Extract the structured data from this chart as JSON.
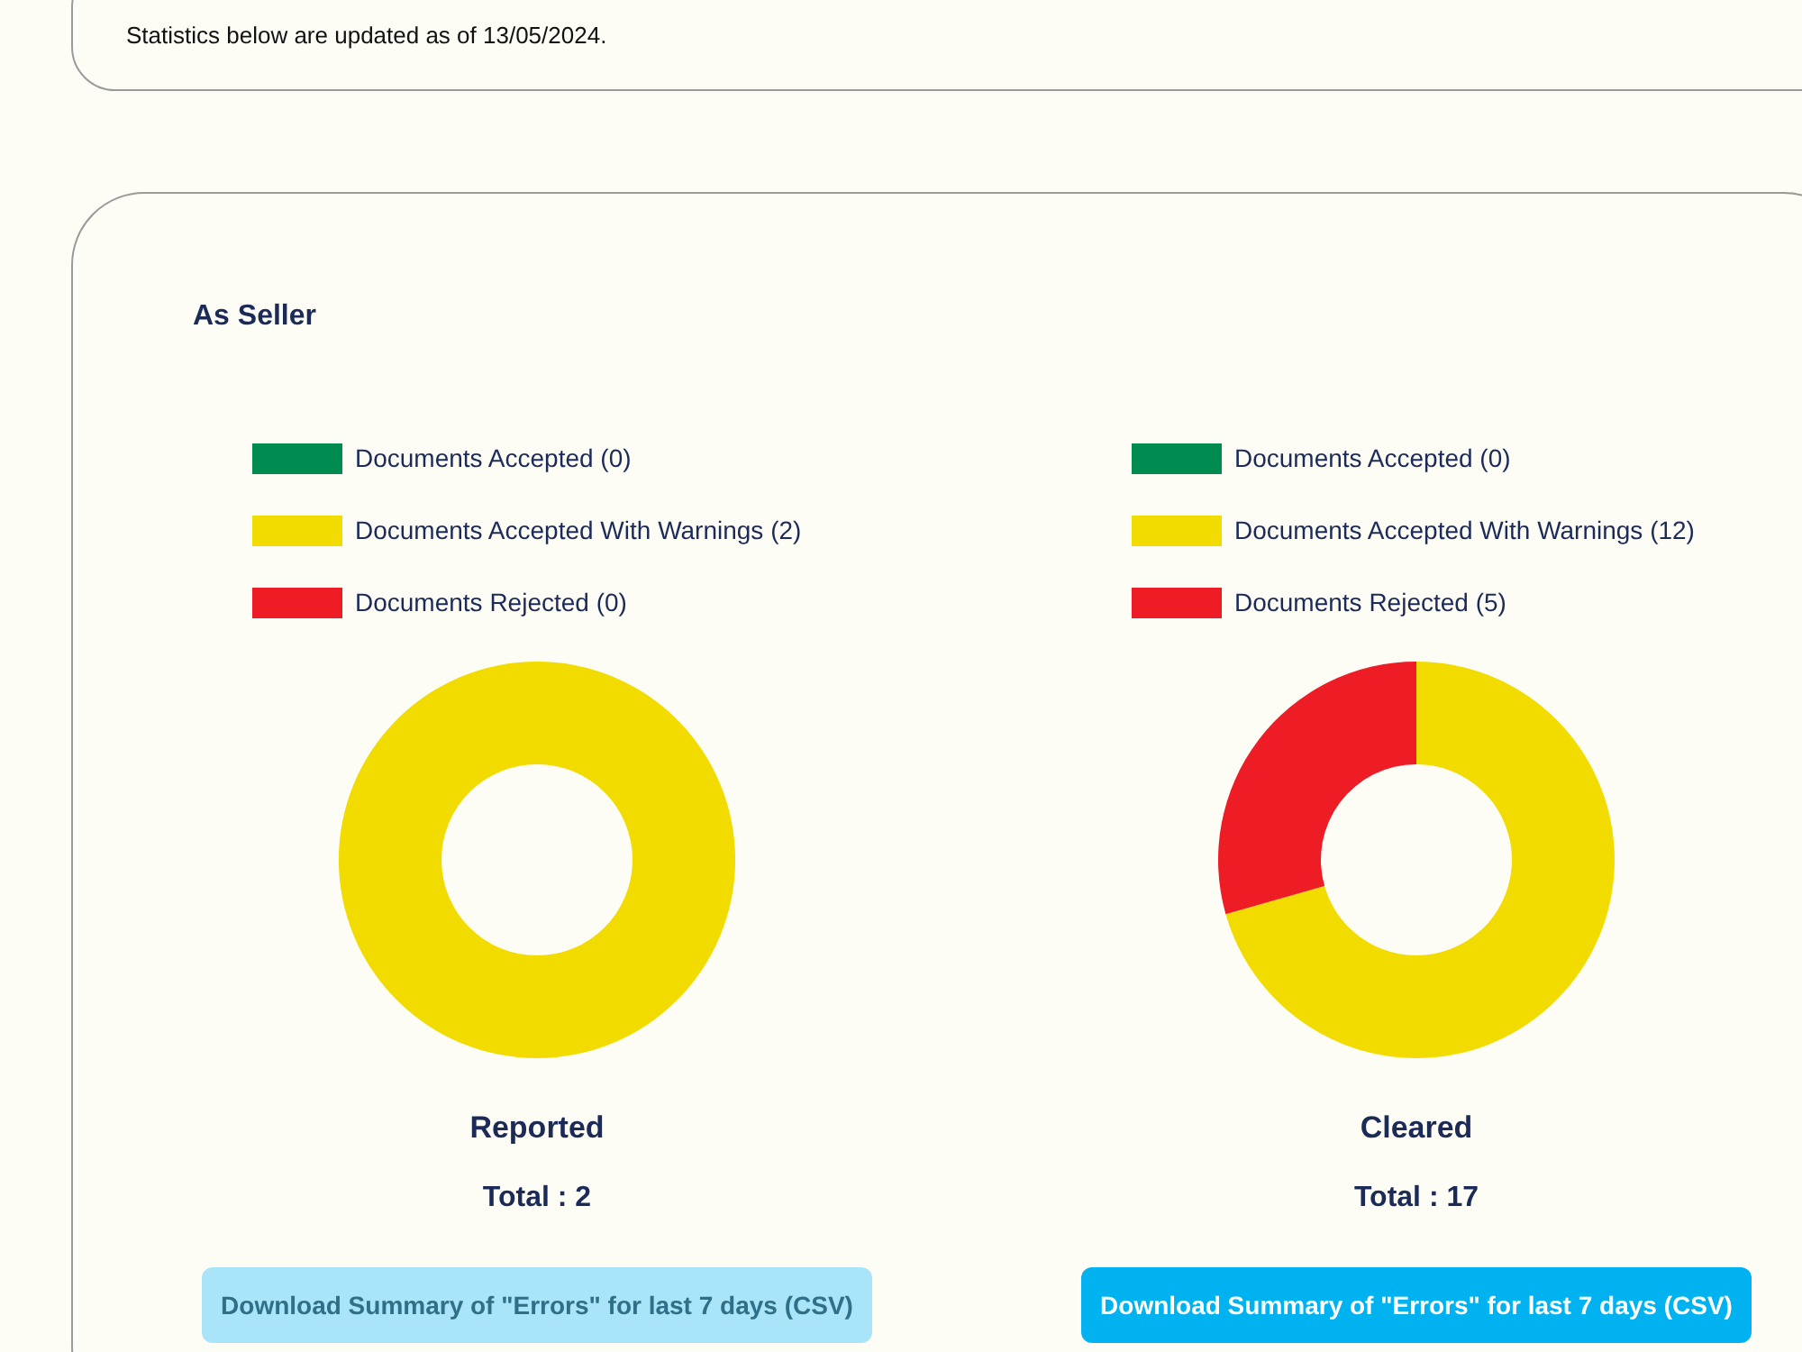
{
  "chart_data": [
    {
      "type": "donut",
      "title": "Reported",
      "subtitle": "Total : 2",
      "categories": [
        "Documents Accepted (0)",
        "Documents Accepted With Warnings (2)",
        "Documents Rejected (0)"
      ],
      "values": [
        0,
        2,
        0
      ],
      "colors": [
        "#008c50",
        "#f2dc00",
        "#ee1c25"
      ],
      "legend": "top",
      "annotations": [
        "Statistics below are updated as of 13/05/2024.",
        "As Seller",
        "Download Summary of \"Errors\" for last 7 days (CSV)"
      ]
    },
    {
      "type": "donut",
      "title": "Cleared",
      "subtitle": "Total : 17",
      "categories": [
        "Documents Accepted (0)",
        "Documents Accepted With Warnings (12)",
        "Documents Rejected (5)"
      ],
      "values": [
        0,
        12,
        5
      ],
      "colors": [
        "#008c50",
        "#f2dc00",
        "#ee1c25"
      ],
      "legend": "top",
      "annotations": [
        "Download Summary of \"Errors\" for last 7 days (CSV)"
      ]
    }
  ]
}
